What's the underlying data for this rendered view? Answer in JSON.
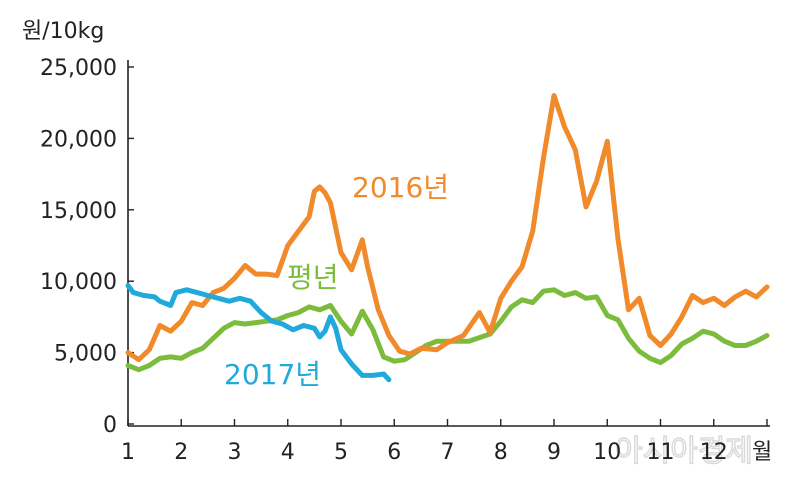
{
  "chart_data": {
    "type": "line",
    "title": "",
    "ylabel": "원/10kg",
    "xlabel": "월",
    "ylim": [
      0,
      25000
    ],
    "xlim": [
      1,
      13.2
    ],
    "x_ticks": [
      "1",
      "2",
      "3",
      "4",
      "5",
      "6",
      "7",
      "8",
      "9",
      "10",
      "11",
      "12"
    ],
    "y_ticks": [
      "0",
      "5,000",
      "10,000",
      "15,000",
      "20,000",
      "25,000"
    ],
    "grid": false,
    "colors": {
      "2016": "#f08a2a",
      "normal": "#7cbc3c",
      "2017": "#21a9dc"
    },
    "series": [
      {
        "name": "2016년",
        "color": "#f08a2a",
        "points": [
          [
            1.0,
            5000
          ],
          [
            1.2,
            4500
          ],
          [
            1.4,
            5200
          ],
          [
            1.6,
            6900
          ],
          [
            1.8,
            6500
          ],
          [
            2.0,
            7200
          ],
          [
            2.2,
            8500
          ],
          [
            2.4,
            8300
          ],
          [
            2.6,
            9200
          ],
          [
            2.8,
            9500
          ],
          [
            3.0,
            10200
          ],
          [
            3.2,
            11100
          ],
          [
            3.4,
            10500
          ],
          [
            3.6,
            10500
          ],
          [
            3.8,
            10400
          ],
          [
            4.0,
            12500
          ],
          [
            4.2,
            13500
          ],
          [
            4.4,
            14500
          ],
          [
            4.5,
            16300
          ],
          [
            4.6,
            16600
          ],
          [
            4.7,
            16200
          ],
          [
            4.8,
            15500
          ],
          [
            5.0,
            12000
          ],
          [
            5.2,
            10800
          ],
          [
            5.4,
            12900
          ],
          [
            5.5,
            11000
          ],
          [
            5.7,
            8000
          ],
          [
            5.9,
            6200
          ],
          [
            6.1,
            5100
          ],
          [
            6.3,
            4900
          ],
          [
            6.5,
            5300
          ],
          [
            6.8,
            5200
          ],
          [
            7.0,
            5700
          ],
          [
            7.3,
            6200
          ],
          [
            7.6,
            7800
          ],
          [
            7.8,
            6400
          ],
          [
            8.0,
            8800
          ],
          [
            8.2,
            10000
          ],
          [
            8.4,
            11000
          ],
          [
            8.6,
            13500
          ],
          [
            8.8,
            18600
          ],
          [
            9.0,
            23000
          ],
          [
            9.2,
            20800
          ],
          [
            9.4,
            19200
          ],
          [
            9.6,
            15200
          ],
          [
            9.8,
            17000
          ],
          [
            10.0,
            19800
          ],
          [
            10.2,
            13000
          ],
          [
            10.4,
            8000
          ],
          [
            10.6,
            8800
          ],
          [
            10.8,
            6200
          ],
          [
            11.0,
            5500
          ],
          [
            11.2,
            6300
          ],
          [
            11.4,
            7500
          ],
          [
            11.6,
            9000
          ],
          [
            11.8,
            8500
          ],
          [
            12.0,
            8800
          ],
          [
            12.2,
            8300
          ],
          [
            12.4,
            8900
          ],
          [
            12.6,
            9300
          ],
          [
            12.8,
            8900
          ],
          [
            13.0,
            9600
          ]
        ]
      },
      {
        "name": "평년",
        "color": "#7cbc3c",
        "points": [
          [
            1.0,
            4100
          ],
          [
            1.2,
            3800
          ],
          [
            1.4,
            4100
          ],
          [
            1.6,
            4600
          ],
          [
            1.8,
            4700
          ],
          [
            2.0,
            4600
          ],
          [
            2.2,
            5000
          ],
          [
            2.4,
            5300
          ],
          [
            2.6,
            6000
          ],
          [
            2.8,
            6700
          ],
          [
            3.0,
            7100
          ],
          [
            3.2,
            7000
          ],
          [
            3.4,
            7100
          ],
          [
            3.6,
            7200
          ],
          [
            3.8,
            7300
          ],
          [
            4.0,
            7600
          ],
          [
            4.2,
            7800
          ],
          [
            4.4,
            8200
          ],
          [
            4.6,
            8000
          ],
          [
            4.8,
            8300
          ],
          [
            5.0,
            7200
          ],
          [
            5.2,
            6300
          ],
          [
            5.4,
            7900
          ],
          [
            5.6,
            6600
          ],
          [
            5.8,
            4700
          ],
          [
            6.0,
            4400
          ],
          [
            6.2,
            4500
          ],
          [
            6.4,
            5000
          ],
          [
            6.6,
            5500
          ],
          [
            6.8,
            5800
          ],
          [
            7.0,
            5800
          ],
          [
            7.4,
            5800
          ],
          [
            7.8,
            6300
          ],
          [
            8.0,
            7200
          ],
          [
            8.2,
            8200
          ],
          [
            8.4,
            8700
          ],
          [
            8.6,
            8500
          ],
          [
            8.8,
            9300
          ],
          [
            9.0,
            9400
          ],
          [
            9.2,
            9000
          ],
          [
            9.4,
            9200
          ],
          [
            9.6,
            8800
          ],
          [
            9.8,
            8900
          ],
          [
            10.0,
            7600
          ],
          [
            10.2,
            7300
          ],
          [
            10.4,
            6000
          ],
          [
            10.6,
            5100
          ],
          [
            10.8,
            4600
          ],
          [
            11.0,
            4300
          ],
          [
            11.2,
            4800
          ],
          [
            11.4,
            5600
          ],
          [
            11.6,
            6000
          ],
          [
            11.8,
            6500
          ],
          [
            12.0,
            6300
          ],
          [
            12.2,
            5800
          ],
          [
            12.4,
            5500
          ],
          [
            12.6,
            5500
          ],
          [
            12.8,
            5800
          ],
          [
            13.0,
            6200
          ]
        ]
      },
      {
        "name": "2017년",
        "color": "#21a9dc",
        "points": [
          [
            1.0,
            9700
          ],
          [
            1.1,
            9200
          ],
          [
            1.3,
            9000
          ],
          [
            1.5,
            8900
          ],
          [
            1.6,
            8600
          ],
          [
            1.8,
            8300
          ],
          [
            1.9,
            9200
          ],
          [
            2.1,
            9400
          ],
          [
            2.3,
            9200
          ],
          [
            2.5,
            9000
          ],
          [
            2.7,
            8800
          ],
          [
            2.9,
            8600
          ],
          [
            3.1,
            8800
          ],
          [
            3.3,
            8600
          ],
          [
            3.5,
            7800
          ],
          [
            3.7,
            7200
          ],
          [
            3.9,
            7000
          ],
          [
            4.1,
            6600
          ],
          [
            4.3,
            6900
          ],
          [
            4.5,
            6700
          ],
          [
            4.6,
            6100
          ],
          [
            4.7,
            6500
          ],
          [
            4.8,
            7500
          ],
          [
            4.9,
            6700
          ],
          [
            5.0,
            5200
          ],
          [
            5.2,
            4200
          ],
          [
            5.4,
            3400
          ],
          [
            5.6,
            3400
          ],
          [
            5.8,
            3500
          ],
          [
            5.9,
            3100
          ]
        ]
      }
    ],
    "series_labels": [
      "2016년",
      "평년",
      "2017년"
    ],
    "watermark": "아시아경제"
  }
}
